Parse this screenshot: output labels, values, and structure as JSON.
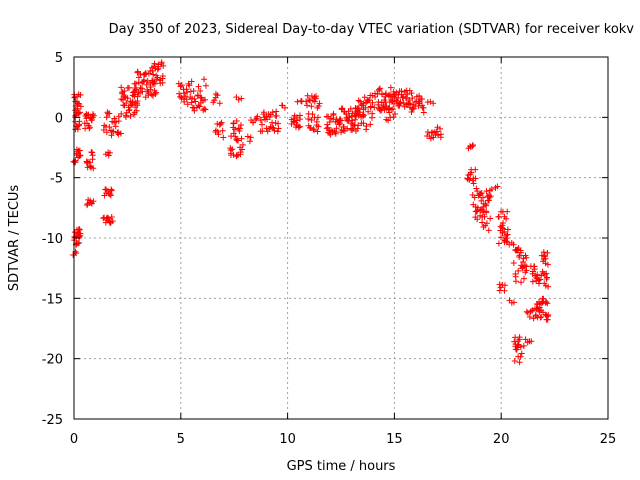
{
  "chart_data": {
    "type": "scatter",
    "title": "Day 350 of 2023, Sidereal Day-to-day VTEC variation (SDTVAR) for receiver kokv",
    "xlabel": "GPS time / hours",
    "ylabel": "SDTVAR / TECUs",
    "xlim": [
      0,
      25
    ],
    "ylim": [
      -25,
      5
    ],
    "xticks": [
      0,
      5,
      10,
      15,
      20,
      25
    ],
    "yticks": [
      -25,
      -20,
      -15,
      -10,
      -5,
      0,
      5
    ],
    "grid": true,
    "marker": "+",
    "color": "#ff0000",
    "clusters": [
      {
        "x0": 0.0,
        "x1": 0.3,
        "y0": -11.5,
        "y1": -9.0,
        "n": 25
      },
      {
        "x0": 0.0,
        "x1": 0.3,
        "y0": -4.0,
        "y1": -2.5,
        "n": 15
      },
      {
        "x0": 0.0,
        "x1": 0.3,
        "y0": -1.0,
        "y1": 2.0,
        "n": 30
      },
      {
        "x0": 0.5,
        "x1": 0.9,
        "y0": -1.0,
        "y1": 0.3,
        "n": 18
      },
      {
        "x0": 0.6,
        "x1": 0.9,
        "y0": -4.3,
        "y1": -2.5,
        "n": 14
      },
      {
        "x0": 0.6,
        "x1": 0.9,
        "y0": -7.3,
        "y1": -6.8,
        "n": 8
      },
      {
        "x0": 1.4,
        "x1": 1.8,
        "y0": -8.8,
        "y1": -8.2,
        "n": 12
      },
      {
        "x0": 1.4,
        "x1": 1.8,
        "y0": -6.5,
        "y1": -5.8,
        "n": 10
      },
      {
        "x0": 1.5,
        "x1": 1.7,
        "y0": -3.2,
        "y1": -2.8,
        "n": 4
      },
      {
        "x0": 1.4,
        "x1": 2.2,
        "y0": -1.5,
        "y1": 0.5,
        "n": 25
      },
      {
        "x0": 2.2,
        "x1": 3.0,
        "y0": 0.0,
        "y1": 2.5,
        "n": 40
      },
      {
        "x0": 2.8,
        "x1": 3.8,
        "y0": 1.5,
        "y1": 3.8,
        "n": 45
      },
      {
        "x0": 3.6,
        "x1": 4.2,
        "y0": 2.8,
        "y1": 4.6,
        "n": 25
      },
      {
        "x0": 4.9,
        "x1": 5.5,
        "y0": 1.0,
        "y1": 2.8,
        "n": 20
      },
      {
        "x0": 5.5,
        "x1": 6.2,
        "y0": 0.5,
        "y1": 3.2,
        "n": 25
      },
      {
        "x0": 6.5,
        "x1": 6.8,
        "y0": 1.0,
        "y1": 2.0,
        "n": 6
      },
      {
        "x0": 6.6,
        "x1": 7.0,
        "y0": -1.8,
        "y1": -0.3,
        "n": 10
      },
      {
        "x0": 7.3,
        "x1": 7.9,
        "y0": -3.3,
        "y1": -0.3,
        "n": 30
      },
      {
        "x0": 7.6,
        "x1": 7.8,
        "y0": 1.3,
        "y1": 1.7,
        "n": 3
      },
      {
        "x0": 8.1,
        "x1": 8.3,
        "y0": -2.0,
        "y1": -1.5,
        "n": 3
      },
      {
        "x0": 8.3,
        "x1": 8.6,
        "y0": -0.5,
        "y1": 0.2,
        "n": 6
      },
      {
        "x0": 8.7,
        "x1": 9.6,
        "y0": -1.2,
        "y1": 0.5,
        "n": 30
      },
      {
        "x0": 9.7,
        "x1": 9.9,
        "y0": 0.7,
        "y1": 1.0,
        "n": 3
      },
      {
        "x0": 10.2,
        "x1": 10.6,
        "y0": -1.0,
        "y1": 0.3,
        "n": 15
      },
      {
        "x0": 10.5,
        "x1": 10.7,
        "y0": 1.2,
        "y1": 1.5,
        "n": 3
      },
      {
        "x0": 10.9,
        "x1": 11.5,
        "y0": -1.2,
        "y1": 1.8,
        "n": 30
      },
      {
        "x0": 11.8,
        "x1": 12.5,
        "y0": -1.5,
        "y1": 0.5,
        "n": 30
      },
      {
        "x0": 12.5,
        "x1": 13.3,
        "y0": -1.2,
        "y1": 0.8,
        "n": 35
      },
      {
        "x0": 13.2,
        "x1": 13.6,
        "y0": 0.0,
        "y1": 1.5,
        "n": 15
      },
      {
        "x0": 13.0,
        "x1": 14.0,
        "y0": -1.0,
        "y1": 0.5,
        "n": 15
      },
      {
        "x0": 13.6,
        "x1": 14.1,
        "y0": 0.5,
        "y1": 2.0,
        "n": 15
      },
      {
        "x0": 14.2,
        "x1": 15.0,
        "y0": 0.5,
        "y1": 2.5,
        "n": 40
      },
      {
        "x0": 14.6,
        "x1": 15.0,
        "y0": -0.3,
        "y1": 0.5,
        "n": 6
      },
      {
        "x0": 15.0,
        "x1": 15.8,
        "y0": 0.8,
        "y1": 2.3,
        "n": 35
      },
      {
        "x0": 15.8,
        "x1": 16.4,
        "y0": 0.3,
        "y1": 1.8,
        "n": 20
      },
      {
        "x0": 16.6,
        "x1": 16.8,
        "y0": 1.1,
        "y1": 1.4,
        "n": 3
      },
      {
        "x0": 16.5,
        "x1": 16.9,
        "y0": -1.8,
        "y1": -1.2,
        "n": 8
      },
      {
        "x0": 16.9,
        "x1": 17.2,
        "y0": -1.8,
        "y1": -0.8,
        "n": 8
      },
      {
        "x0": 18.5,
        "x1": 18.7,
        "y0": -2.6,
        "y1": -2.2,
        "n": 5
      },
      {
        "x0": 18.4,
        "x1": 18.8,
        "y0": -5.5,
        "y1": -4.0,
        "n": 12
      },
      {
        "x0": 18.7,
        "x1": 19.1,
        "y0": -8.8,
        "y1": -5.8,
        "n": 20
      },
      {
        "x0": 19.1,
        "x1": 19.5,
        "y0": -9.5,
        "y1": -6.0,
        "n": 25
      },
      {
        "x0": 19.6,
        "x1": 19.8,
        "y0": -6.0,
        "y1": -5.7,
        "n": 3
      },
      {
        "x0": 19.9,
        "x1": 20.3,
        "y0": -10.5,
        "y1": -7.5,
        "n": 25
      },
      {
        "x0": 19.9,
        "x1": 20.2,
        "y0": -14.5,
        "y1": -13.8,
        "n": 6
      },
      {
        "x0": 20.3,
        "x1": 20.6,
        "y0": -10.7,
        "y1": -10.3,
        "n": 4
      },
      {
        "x0": 20.4,
        "x1": 20.6,
        "y0": -15.5,
        "y1": -15.1,
        "n": 3
      },
      {
        "x0": 20.6,
        "x1": 21.2,
        "y0": -14.0,
        "y1": -10.8,
        "n": 30
      },
      {
        "x0": 20.6,
        "x1": 20.9,
        "y0": -20.2,
        "y1": -18.2,
        "n": 15
      },
      {
        "x0": 20.9,
        "x1": 21.0,
        "y0": -20.3,
        "y1": -19.5,
        "n": 3
      },
      {
        "x0": 21.1,
        "x1": 21.4,
        "y0": -19.0,
        "y1": -18.3,
        "n": 5
      },
      {
        "x0": 21.2,
        "x1": 21.6,
        "y0": -16.8,
        "y1": -15.8,
        "n": 8
      },
      {
        "x0": 21.4,
        "x1": 21.8,
        "y0": -13.8,
        "y1": -12.2,
        "n": 15
      },
      {
        "x0": 21.6,
        "x1": 22.2,
        "y0": -16.8,
        "y1": -15.0,
        "n": 30
      },
      {
        "x0": 21.9,
        "x1": 22.2,
        "y0": -14.2,
        "y1": -10.8,
        "n": 20
      }
    ]
  }
}
